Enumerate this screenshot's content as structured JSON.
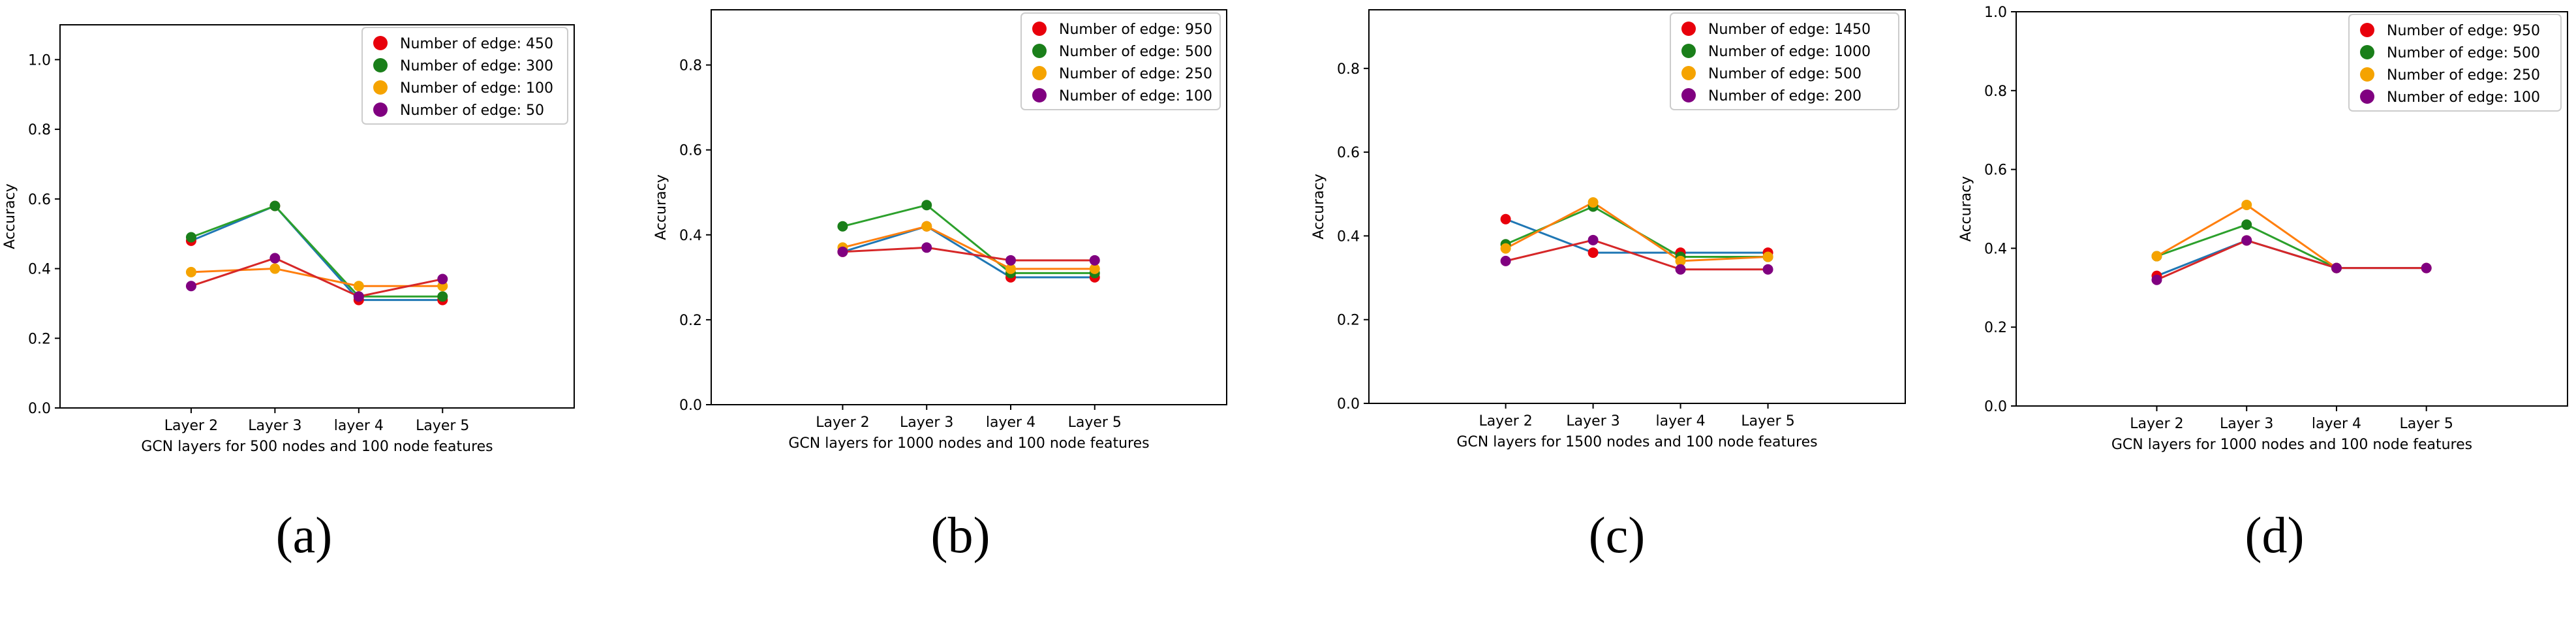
{
  "colors": {
    "red": "#e8000b",
    "green": "#1a7f1a",
    "orange": "#f5a300",
    "purple": "#800080",
    "blue_line": "#1f77b4",
    "orange_line": "#ff7f0e",
    "green_line": "#2ca02c",
    "red_line": "#d62728"
  },
  "chart_data": [
    {
      "type": "line",
      "panel_label": "(a)",
      "xlabel": "GCN layers for 500 nodes and 100 node features",
      "ylabel": "Accuracy",
      "categories": [
        "Layer 2",
        "Layer 3",
        "layer 4",
        "Layer 5"
      ],
      "ylim": [
        0,
        1.1
      ],
      "yticks": [
        "0.0",
        "0.2",
        "0.4",
        "0.6",
        "0.8",
        "1.0"
      ],
      "legend_position": "top-right",
      "grid": false,
      "series": [
        {
          "name": "Number of edge: 450",
          "values": [
            0.48,
            0.58,
            0.31,
            0.31
          ]
        },
        {
          "name": "Number of edge: 300",
          "values": [
            0.49,
            0.58,
            0.32,
            0.32
          ]
        },
        {
          "name": "Number of edge: 100",
          "values": [
            0.39,
            0.4,
            0.35,
            0.35
          ]
        },
        {
          "name": "Number of edge: 50",
          "values": [
            0.35,
            0.43,
            0.32,
            0.37
          ]
        }
      ]
    },
    {
      "type": "line",
      "panel_label": "(b)",
      "xlabel": "GCN layers for 1000 nodes and 100 node features",
      "ylabel": "Accuracy",
      "categories": [
        "Layer 2",
        "Layer 3",
        "layer 4",
        "Layer 5"
      ],
      "ylim": [
        0,
        0.93
      ],
      "yticks": [
        "0.0",
        "0.2",
        "0.4",
        "0.6",
        "0.8"
      ],
      "legend_position": "top-right",
      "grid": false,
      "series": [
        {
          "name": "Number of edge: 950",
          "values": [
            0.36,
            0.42,
            0.3,
            0.3
          ]
        },
        {
          "name": "Number of edge: 500",
          "values": [
            0.42,
            0.47,
            0.31,
            0.31
          ]
        },
        {
          "name": "Number of edge: 250",
          "values": [
            0.37,
            0.42,
            0.32,
            0.32
          ]
        },
        {
          "name": "Number of edge: 100",
          "values": [
            0.36,
            0.37,
            0.34,
            0.34
          ]
        }
      ]
    },
    {
      "type": "line",
      "panel_label": "(c)",
      "xlabel": "GCN layers for 1500 nodes and 100 node features",
      "ylabel": "Accuracy",
      "categories": [
        "Layer 2",
        "Layer 3",
        "layer 4",
        "Layer 5"
      ],
      "ylim": [
        0,
        0.94
      ],
      "yticks": [
        "0.0",
        "0.2",
        "0.4",
        "0.6",
        "0.8"
      ],
      "legend_position": "top-right",
      "grid": false,
      "series": [
        {
          "name": "Number of edge: 1450",
          "values": [
            0.44,
            0.36,
            0.36,
            0.36
          ]
        },
        {
          "name": "Number of edge: 1000",
          "values": [
            0.38,
            0.47,
            0.35,
            0.35
          ]
        },
        {
          "name": "Number of edge: 500",
          "values": [
            0.37,
            0.48,
            0.34,
            0.35
          ]
        },
        {
          "name": "Number of edge: 200",
          "values": [
            0.34,
            0.39,
            0.32,
            0.32
          ]
        }
      ]
    },
    {
      "type": "line",
      "panel_label": "(d)",
      "xlabel": "GCN layers for 1000 nodes and 100 node features",
      "ylabel": "Accuracy",
      "categories": [
        "Layer 2",
        "Layer 3",
        "layer 4",
        "Layer 5"
      ],
      "ylim": [
        0,
        1.0
      ],
      "yticks": [
        "0.0",
        "0.2",
        "0.4",
        "0.6",
        "0.8",
        "1.0"
      ],
      "legend_position": "top-right",
      "grid": false,
      "series": [
        {
          "name": "Number of edge: 950",
          "values": [
            0.33,
            0.42,
            0.35,
            0.35
          ]
        },
        {
          "name": "Number of edge: 500",
          "values": [
            0.38,
            0.46,
            0.35,
            null
          ]
        },
        {
          "name": "Number of edge: 250",
          "values": [
            0.38,
            0.51,
            0.35,
            null
          ]
        },
        {
          "name": "Number of edge: 100",
          "values": [
            0.32,
            0.42,
            0.35,
            0.35
          ]
        }
      ]
    }
  ]
}
